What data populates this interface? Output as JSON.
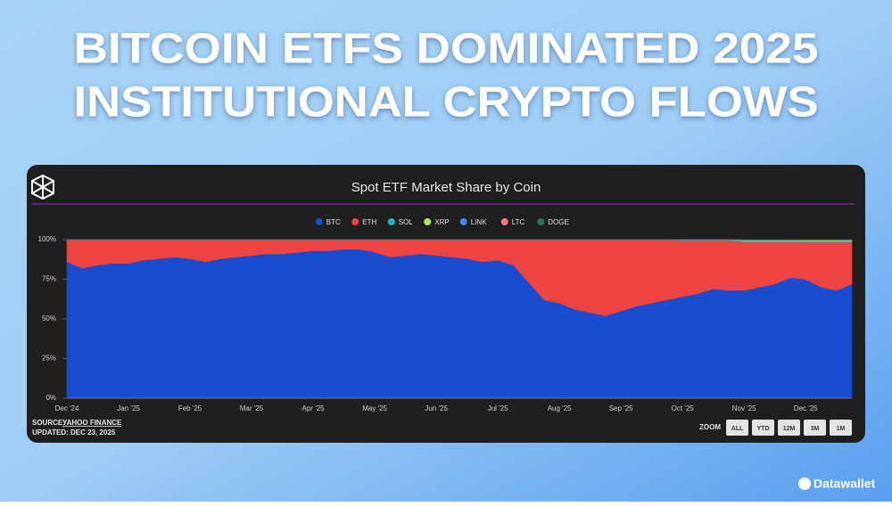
{
  "header": {
    "title_lines": [
      "BITCOIN ETFS DOMINATED 2025",
      "INSTITUTIONAL CRYPTO FLOWS"
    ]
  },
  "chart_data": {
    "type": "stacked-area",
    "title": "Spot ETF Market Share by Coin",
    "categories": [
      "Dec '24",
      null,
      null,
      null,
      "Jan '25",
      null,
      null,
      null,
      "Feb '25",
      null,
      null,
      null,
      "Mar '25",
      null,
      null,
      null,
      "Apr '25",
      null,
      null,
      null,
      "May '25",
      null,
      null,
      null,
      "Jun '25",
      null,
      null,
      null,
      "Jul '25",
      null,
      null,
      null,
      "Aug '25",
      null,
      null,
      null,
      "Sep '25",
      null,
      null,
      null,
      "Oct '25",
      null,
      null,
      null,
      "Nov '25",
      null,
      null,
      null,
      "Dec '25",
      null,
      null,
      null
    ],
    "series": [
      {
        "name": "BTC",
        "color": "#1a4cd0",
        "values": [
          86,
          82,
          84,
          85,
          85,
          87,
          88,
          89,
          88,
          86,
          88,
          89,
          90,
          91,
          91,
          92,
          93,
          93,
          94,
          94,
          92,
          89,
          90,
          91,
          90,
          89,
          88,
          86,
          87,
          84,
          73,
          62,
          60,
          56,
          54,
          52,
          55,
          58,
          60,
          62,
          64,
          66,
          69,
          68,
          68,
          70,
          72,
          76,
          75,
          70,
          68,
          72
        ]
      },
      {
        "name": "ETH",
        "color": "#ee4444",
        "values": [
          14,
          18,
          16,
          15,
          15,
          13,
          12,
          11,
          12,
          14,
          12,
          11,
          10,
          9,
          9,
          8,
          7,
          7,
          6,
          6,
          8,
          11,
          10,
          9,
          10,
          11,
          12,
          14,
          13,
          16,
          27,
          38,
          40,
          44,
          46,
          48,
          45,
          42,
          40,
          38,
          35.5,
          33.5,
          30.5,
          31.5,
          30.5,
          28.5,
          26.5,
          22.5,
          23.4,
          28.4,
          30.4,
          26.4
        ]
      },
      {
        "name": "SOL",
        "color": "#19b6c4",
        "values": [
          0,
          0,
          0,
          0,
          0,
          0,
          0,
          0,
          0,
          0,
          0,
          0,
          0,
          0,
          0,
          0,
          0,
          0,
          0,
          0,
          0,
          0,
          0,
          0,
          0,
          0,
          0,
          0,
          0,
          0,
          0,
          0,
          0,
          0,
          0,
          0,
          0,
          0,
          0,
          0,
          0.5,
          0.5,
          0.5,
          0.5,
          0.8,
          0.8,
          0.8,
          0.8,
          0.8,
          0.8,
          0.8,
          0.8
        ]
      },
      {
        "name": "XRP",
        "color": "#b4e35c",
        "values": [
          0,
          0,
          0,
          0,
          0,
          0,
          0,
          0,
          0,
          0,
          0,
          0,
          0,
          0,
          0,
          0,
          0,
          0,
          0,
          0,
          0,
          0,
          0,
          0,
          0,
          0,
          0,
          0,
          0,
          0,
          0,
          0,
          0,
          0,
          0,
          0,
          0,
          0,
          0,
          0,
          0,
          0,
          0,
          0,
          0.4,
          0.4,
          0.4,
          0.4,
          0.4,
          0.4,
          0.4,
          0.4
        ]
      },
      {
        "name": "LINK",
        "color": "#4a86ee",
        "values": [
          0,
          0,
          0,
          0,
          0,
          0,
          0,
          0,
          0,
          0,
          0,
          0,
          0,
          0,
          0,
          0,
          0,
          0,
          0,
          0,
          0,
          0,
          0,
          0,
          0,
          0,
          0,
          0,
          0,
          0,
          0,
          0,
          0,
          0,
          0,
          0,
          0,
          0,
          0,
          0,
          0,
          0,
          0,
          0,
          0,
          0,
          0,
          0,
          0.1,
          0.1,
          0.1,
          0.1
        ]
      },
      {
        "name": "LTC",
        "color": "#f07a7a",
        "values": [
          0,
          0,
          0,
          0,
          0,
          0,
          0,
          0,
          0,
          0,
          0,
          0,
          0,
          0,
          0,
          0,
          0,
          0,
          0,
          0,
          0,
          0,
          0,
          0,
          0,
          0,
          0,
          0,
          0,
          0,
          0,
          0,
          0,
          0,
          0,
          0,
          0,
          0,
          0,
          0,
          0,
          0,
          0,
          0,
          0.1,
          0.1,
          0.1,
          0.1,
          0.1,
          0.1,
          0.1,
          0.1
        ]
      },
      {
        "name": "DOGE",
        "color": "#1e7a64",
        "values": [
          0,
          0,
          0,
          0,
          0,
          0,
          0,
          0,
          0,
          0,
          0,
          0,
          0,
          0,
          0,
          0,
          0,
          0,
          0,
          0,
          0,
          0,
          0,
          0,
          0,
          0,
          0,
          0,
          0,
          0,
          0,
          0,
          0,
          0,
          0,
          0,
          0,
          0,
          0,
          0,
          0,
          0,
          0,
          0,
          0.2,
          0.2,
          0.2,
          0.2,
          0.2,
          0.2,
          0.2,
          0.2
        ]
      }
    ],
    "ylim": [
      0,
      100
    ],
    "yticks": [
      {
        "value": 0,
        "label": "0%"
      },
      {
        "value": 25,
        "label": "25%"
      },
      {
        "value": 50,
        "label": "50%"
      },
      {
        "value": 75,
        "label": "75%"
      },
      {
        "value": 100,
        "label": "100%"
      }
    ],
    "legend": "top"
  },
  "footer": {
    "source_label": "SOURCE:",
    "source_link": "YAHOO FINANCE",
    "updated": "UPDATED: DEC 23, 2025",
    "zoom_label": "ZOOM",
    "zoom_buttons": [
      "ALL",
      "YTD",
      "12M",
      "3M",
      "1M"
    ]
  },
  "brand": "Datawallet"
}
